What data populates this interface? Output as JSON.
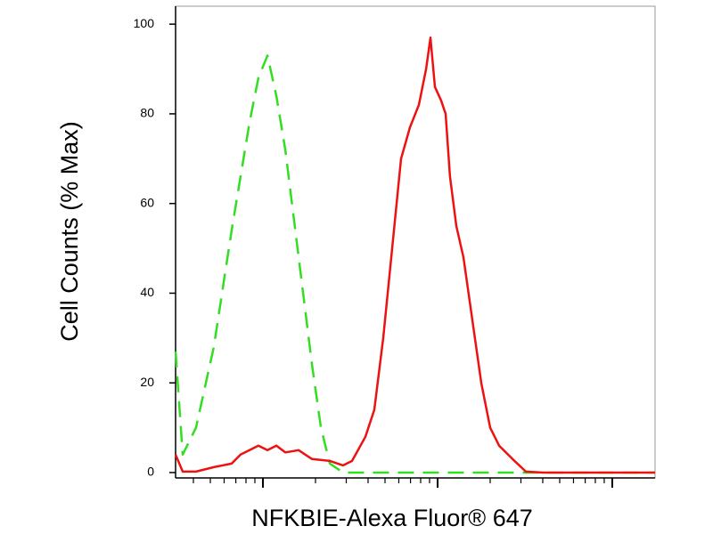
{
  "chart_data": {
    "type": "line",
    "x_label": "NFKBIE-Alexa Fluor® 647",
    "y_label": "Cell Counts (% Max)",
    "xlim": [
      0,
      2.745
    ],
    "xticks": [
      0.5,
      1.5,
      2.5
    ],
    "xminorticks": [
      0.102,
      0.199,
      0.278,
      0.345,
      0.403,
      0.454,
      0.801,
      0.977,
      1.102,
      1.199,
      1.278,
      1.345,
      1.403,
      1.454,
      1.801,
      1.977,
      2.102,
      2.199,
      2.278,
      2.345,
      2.403,
      2.454
    ],
    "ylim": [
      -1.2,
      104
    ],
    "yticks": [
      0,
      20,
      40,
      60,
      80,
      100
    ],
    "series": [
      {
        "color": "#33dd22",
        "dashed": true,
        "x": [
          0,
          0.041,
          0.117,
          0.219,
          0.321,
          0.423,
          0.474,
          0.526,
          0.577,
          0.628,
          0.679,
          0.73,
          0.781,
          0.832,
          0.883,
          0.959,
          1.546,
          2.745
        ],
        "values": [
          27,
          4,
          10,
          28,
          54,
          78,
          88,
          93,
          84,
          72,
          56,
          40,
          24,
          10,
          2,
          0,
          0,
          0
        ]
      },
      {
        "color": "#ee1111",
        "dashed": false,
        "x": [
          0,
          0.041,
          0.117,
          0.219,
          0.321,
          0.372,
          0.474,
          0.526,
          0.577,
          0.628,
          0.704,
          0.781,
          0.883,
          0.959,
          1.01,
          1.087,
          1.138,
          1.189,
          1.24,
          1.291,
          1.342,
          1.393,
          1.434,
          1.459,
          1.485,
          1.52,
          1.546,
          1.571,
          1.607,
          1.648,
          1.699,
          1.75,
          1.801,
          1.852,
          1.929,
          2.005,
          2.107,
          2.745
        ],
        "values": [
          4,
          0.2,
          0.2,
          1.2,
          2,
          4,
          6,
          5,
          6,
          4.5,
          5,
          3,
          2.6,
          1.6,
          2.6,
          8,
          14,
          30,
          50,
          70,
          77,
          82,
          90,
          97,
          86,
          83,
          80,
          66,
          55,
          48,
          34,
          20,
          10,
          6,
          3,
          0.2,
          0,
          0
        ]
      }
    ]
  }
}
